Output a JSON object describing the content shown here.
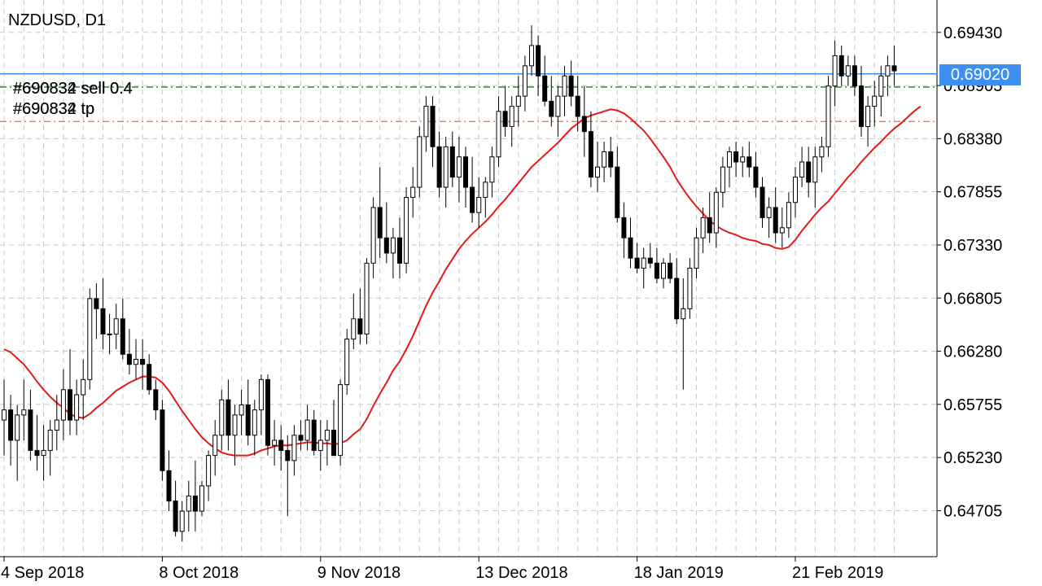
{
  "header": {
    "symbol_timeframe": "NZDUSD, D1"
  },
  "orders": [
    {
      "label": "#690834 sell 0.4",
      "overlay_label": "#690832 sell 0.4",
      "level": 0.6889,
      "color": "#1a7f1a",
      "style": "dash-dot"
    },
    {
      "label": "#690834 tp",
      "overlay_label": "#690832 tp",
      "level": 0.6855,
      "color": "#f06a2a",
      "style": "dash-dot"
    }
  ],
  "current_price": {
    "value": 0.6902,
    "label": "0.69020",
    "line_color": "#3d8ff0"
  },
  "colors": {
    "bull_fill": "#ffffff",
    "bear_fill": "#000000",
    "candle_outline": "#000000",
    "ma_line": "#e31a1a",
    "grid": "#c8c8c8"
  },
  "chart_data": {
    "type": "candlestick",
    "title": "NZDUSD, D1",
    "grid": true,
    "ylim": [
      0.6425,
      0.6975
    ],
    "y_ticks": [
      0.6943,
      0.68905,
      0.6838,
      0.67855,
      0.6733,
      0.66805,
      0.6628,
      0.65755,
      0.6523,
      0.64705
    ],
    "y_tick_labels": [
      "0.69430",
      "0.68905",
      "0.68380",
      "0.67855",
      "0.67330",
      "0.66805",
      "0.66280",
      "0.65755",
      "0.65230",
      "0.64705"
    ],
    "x_labels": [
      {
        "index": 0,
        "text": "4 Sep 2018"
      },
      {
        "index": 24,
        "text": "8 Oct 2018"
      },
      {
        "index": 48,
        "text": "9 Nov 2018"
      },
      {
        "index": 72,
        "text": "13 Dec 2018"
      },
      {
        "index": 96,
        "text": "18 Jan 2019"
      },
      {
        "index": 120,
        "text": "21 Feb 2019"
      }
    ],
    "ohlc": [
      [
        0.656,
        0.66,
        0.6525,
        0.657
      ],
      [
        0.657,
        0.6585,
        0.6515,
        0.654
      ],
      [
        0.654,
        0.6575,
        0.65,
        0.6565
      ],
      [
        0.6565,
        0.66,
        0.654,
        0.657
      ],
      [
        0.657,
        0.659,
        0.652,
        0.653
      ],
      [
        0.653,
        0.6565,
        0.651,
        0.6525
      ],
      [
        0.6525,
        0.6555,
        0.65,
        0.653
      ],
      [
        0.653,
        0.656,
        0.6505,
        0.655
      ],
      [
        0.655,
        0.6585,
        0.653,
        0.656
      ],
      [
        0.656,
        0.661,
        0.654,
        0.659
      ],
      [
        0.659,
        0.663,
        0.6545,
        0.656
      ],
      [
        0.656,
        0.66,
        0.6545,
        0.6585
      ],
      [
        0.6585,
        0.662,
        0.656,
        0.66
      ],
      [
        0.66,
        0.669,
        0.659,
        0.668
      ],
      [
        0.668,
        0.6695,
        0.664,
        0.667
      ],
      [
        0.667,
        0.67,
        0.663,
        0.6645
      ],
      [
        0.6645,
        0.6665,
        0.6625,
        0.6645
      ],
      [
        0.6645,
        0.6675,
        0.663,
        0.666
      ],
      [
        0.666,
        0.668,
        0.662,
        0.6625
      ],
      [
        0.6625,
        0.665,
        0.6605,
        0.6615
      ],
      [
        0.6615,
        0.664,
        0.66,
        0.662
      ],
      [
        0.662,
        0.664,
        0.659,
        0.6615
      ],
      [
        0.6615,
        0.6625,
        0.6585,
        0.659
      ],
      [
        0.659,
        0.66,
        0.656,
        0.657
      ],
      [
        0.657,
        0.658,
        0.65,
        0.651
      ],
      [
        0.651,
        0.653,
        0.647,
        0.648
      ],
      [
        0.648,
        0.65,
        0.6445,
        0.645
      ],
      [
        0.645,
        0.648,
        0.644,
        0.647
      ],
      [
        0.647,
        0.65,
        0.645,
        0.6485
      ],
      [
        0.6485,
        0.652,
        0.645,
        0.647
      ],
      [
        0.647,
        0.65,
        0.6465,
        0.6495
      ],
      [
        0.6495,
        0.653,
        0.648,
        0.6525
      ],
      [
        0.6525,
        0.656,
        0.6505,
        0.6545
      ],
      [
        0.6545,
        0.659,
        0.653,
        0.658
      ],
      [
        0.658,
        0.66,
        0.653,
        0.6545
      ],
      [
        0.6545,
        0.6575,
        0.6515,
        0.6565
      ],
      [
        0.6565,
        0.659,
        0.6545,
        0.6575
      ],
      [
        0.6575,
        0.66,
        0.6535,
        0.6545
      ],
      [
        0.6545,
        0.658,
        0.6525,
        0.657
      ],
      [
        0.657,
        0.6605,
        0.6545,
        0.66
      ],
      [
        0.66,
        0.6605,
        0.6525,
        0.6535
      ],
      [
        0.6535,
        0.656,
        0.6515,
        0.654
      ],
      [
        0.654,
        0.6555,
        0.651,
        0.653
      ],
      [
        0.653,
        0.6545,
        0.6465,
        0.652
      ],
      [
        0.652,
        0.6555,
        0.6505,
        0.6545
      ],
      [
        0.6545,
        0.656,
        0.653,
        0.654
      ],
      [
        0.654,
        0.6575,
        0.653,
        0.656
      ],
      [
        0.656,
        0.657,
        0.6525,
        0.653
      ],
      [
        0.653,
        0.656,
        0.651,
        0.654
      ],
      [
        0.654,
        0.656,
        0.6515,
        0.655
      ],
      [
        0.655,
        0.658,
        0.6525,
        0.6525
      ],
      [
        0.6525,
        0.66,
        0.6515,
        0.6595
      ],
      [
        0.6595,
        0.665,
        0.6585,
        0.664
      ],
      [
        0.664,
        0.6685,
        0.663,
        0.666
      ],
      [
        0.666,
        0.669,
        0.6635,
        0.6645
      ],
      [
        0.6645,
        0.672,
        0.6635,
        0.6715
      ],
      [
        0.6715,
        0.678,
        0.67,
        0.677
      ],
      [
        0.677,
        0.681,
        0.672,
        0.674
      ],
      [
        0.674,
        0.6775,
        0.6715,
        0.6725
      ],
      [
        0.6725,
        0.675,
        0.67,
        0.674
      ],
      [
        0.674,
        0.676,
        0.67,
        0.6715
      ],
      [
        0.6715,
        0.679,
        0.6705,
        0.678
      ],
      [
        0.678,
        0.681,
        0.676,
        0.679
      ],
      [
        0.679,
        0.685,
        0.678,
        0.684
      ],
      [
        0.684,
        0.688,
        0.6825,
        0.687
      ],
      [
        0.687,
        0.688,
        0.681,
        0.683
      ],
      [
        0.683,
        0.6845,
        0.678,
        0.679
      ],
      [
        0.679,
        0.684,
        0.677,
        0.683
      ],
      [
        0.683,
        0.6845,
        0.679,
        0.68
      ],
      [
        0.68,
        0.684,
        0.6775,
        0.682
      ],
      [
        0.682,
        0.683,
        0.677,
        0.679
      ],
      [
        0.679,
        0.682,
        0.6755,
        0.6765
      ],
      [
        0.6765,
        0.68,
        0.675,
        0.678
      ],
      [
        0.678,
        0.68,
        0.676,
        0.6795
      ],
      [
        0.6795,
        0.683,
        0.678,
        0.682
      ],
      [
        0.682,
        0.688,
        0.681,
        0.6865
      ],
      [
        0.6865,
        0.689,
        0.684,
        0.685
      ],
      [
        0.685,
        0.688,
        0.683,
        0.687
      ],
      [
        0.687,
        0.69,
        0.685,
        0.688
      ],
      [
        0.688,
        0.692,
        0.6865,
        0.691
      ],
      [
        0.691,
        0.695,
        0.69,
        0.693
      ],
      [
        0.693,
        0.694,
        0.688,
        0.69
      ],
      [
        0.69,
        0.692,
        0.687,
        0.6875
      ],
      [
        0.6875,
        0.69,
        0.685,
        0.686
      ],
      [
        0.686,
        0.689,
        0.684,
        0.688
      ],
      [
        0.688,
        0.691,
        0.686,
        0.69
      ],
      [
        0.69,
        0.6915,
        0.687,
        0.688
      ],
      [
        0.688,
        0.69,
        0.6845,
        0.686
      ],
      [
        0.686,
        0.689,
        0.682,
        0.6845
      ],
      [
        0.6845,
        0.6865,
        0.679,
        0.68
      ],
      [
        0.68,
        0.6835,
        0.6785,
        0.681
      ],
      [
        0.681,
        0.6835,
        0.6795,
        0.6825
      ],
      [
        0.6825,
        0.684,
        0.68,
        0.681
      ],
      [
        0.681,
        0.683,
        0.6755,
        0.676
      ],
      [
        0.676,
        0.6775,
        0.672,
        0.674
      ],
      [
        0.674,
        0.676,
        0.671,
        0.672
      ],
      [
        0.672,
        0.6735,
        0.6705,
        0.671
      ],
      [
        0.671,
        0.673,
        0.669,
        0.672
      ],
      [
        0.672,
        0.6735,
        0.671,
        0.6715
      ],
      [
        0.6715,
        0.673,
        0.6695,
        0.67
      ],
      [
        0.67,
        0.672,
        0.669,
        0.6715
      ],
      [
        0.6715,
        0.6725,
        0.6695,
        0.67
      ],
      [
        0.67,
        0.672,
        0.6655,
        0.666
      ],
      [
        0.666,
        0.67,
        0.659,
        0.667
      ],
      [
        0.667,
        0.672,
        0.666,
        0.671
      ],
      [
        0.671,
        0.675,
        0.67,
        0.674
      ],
      [
        0.674,
        0.677,
        0.6725,
        0.676
      ],
      [
        0.676,
        0.6785,
        0.6735,
        0.6745
      ],
      [
        0.6745,
        0.679,
        0.673,
        0.6785
      ],
      [
        0.6785,
        0.682,
        0.677,
        0.681
      ],
      [
        0.681,
        0.683,
        0.679,
        0.6825
      ],
      [
        0.6825,
        0.6835,
        0.68,
        0.6815
      ],
      [
        0.6815,
        0.683,
        0.68,
        0.682
      ],
      [
        0.682,
        0.6835,
        0.68,
        0.681
      ],
      [
        0.681,
        0.6825,
        0.678,
        0.679
      ],
      [
        0.679,
        0.68,
        0.675,
        0.676
      ],
      [
        0.676,
        0.678,
        0.674,
        0.677
      ],
      [
        0.677,
        0.679,
        0.6735,
        0.6745
      ],
      [
        0.6745,
        0.677,
        0.673,
        0.675
      ],
      [
        0.675,
        0.6785,
        0.674,
        0.6775
      ],
      [
        0.6775,
        0.681,
        0.676,
        0.68
      ],
      [
        0.68,
        0.683,
        0.679,
        0.6815
      ],
      [
        0.6815,
        0.683,
        0.678,
        0.6795
      ],
      [
        0.6795,
        0.683,
        0.677,
        0.682
      ],
      [
        0.682,
        0.684,
        0.6805,
        0.683
      ],
      [
        0.683,
        0.69,
        0.682,
        0.689
      ],
      [
        0.689,
        0.6935,
        0.687,
        0.692
      ],
      [
        0.692,
        0.693,
        0.689,
        0.69
      ],
      [
        0.69,
        0.692,
        0.689,
        0.691
      ],
      [
        0.691,
        0.692,
        0.688,
        0.689
      ],
      [
        0.689,
        0.691,
        0.684,
        0.685
      ],
      [
        0.685,
        0.688,
        0.683,
        0.687
      ],
      [
        0.687,
        0.6895,
        0.685,
        0.688
      ],
      [
        0.688,
        0.691,
        0.686,
        0.69
      ],
      [
        0.69,
        0.692,
        0.688,
        0.691
      ],
      [
        0.691,
        0.693,
        0.689,
        0.6905
      ]
    ],
    "ma": [
      0.663,
      0.6627,
      0.6621,
      0.6615,
      0.6607,
      0.6598,
      0.659,
      0.6583,
      0.6577,
      0.6572,
      0.6566,
      0.6563,
      0.6562,
      0.6566,
      0.6572,
      0.6577,
      0.6583,
      0.6589,
      0.6593,
      0.6597,
      0.66,
      0.6603,
      0.6603,
      0.6602,
      0.6597,
      0.6589,
      0.6579,
      0.6569,
      0.656,
      0.6551,
      0.6543,
      0.6537,
      0.6532,
      0.6528,
      0.6526,
      0.6525,
      0.6525,
      0.6525,
      0.6527,
      0.653,
      0.6532,
      0.6534,
      0.6535,
      0.6535,
      0.6536,
      0.6537,
      0.6538,
      0.6538,
      0.6537,
      0.6537,
      0.6536,
      0.6537,
      0.654,
      0.6546,
      0.6551,
      0.6561,
      0.6574,
      0.6586,
      0.6597,
      0.6609,
      0.6618,
      0.663,
      0.6643,
      0.6658,
      0.6673,
      0.6686,
      0.6697,
      0.6709,
      0.6719,
      0.6729,
      0.6737,
      0.6744,
      0.675,
      0.6756,
      0.6763,
      0.6771,
      0.6778,
      0.6786,
      0.6794,
      0.6802,
      0.681,
      0.6816,
      0.6822,
      0.6828,
      0.6834,
      0.6841,
      0.6848,
      0.6853,
      0.6858,
      0.6861,
      0.6863,
      0.6865,
      0.6867,
      0.6866,
      0.6863,
      0.6858,
      0.6852,
      0.6846,
      0.6838,
      0.6829,
      0.682,
      0.681,
      0.6798,
      0.6788,
      0.6779,
      0.6771,
      0.6764,
      0.6757,
      0.6752,
      0.6748,
      0.6745,
      0.6743,
      0.674,
      0.6738,
      0.6737,
      0.6734,
      0.6733,
      0.673,
      0.6729,
      0.6731,
      0.6738,
      0.6747,
      0.6755,
      0.6763,
      0.677,
      0.6776,
      0.6784,
      0.6792,
      0.68,
      0.6807,
      0.6815,
      0.6822,
      0.6829,
      0.6835,
      0.6842,
      0.6848,
      0.6853,
      0.6859,
      0.6865,
      0.687
    ]
  }
}
